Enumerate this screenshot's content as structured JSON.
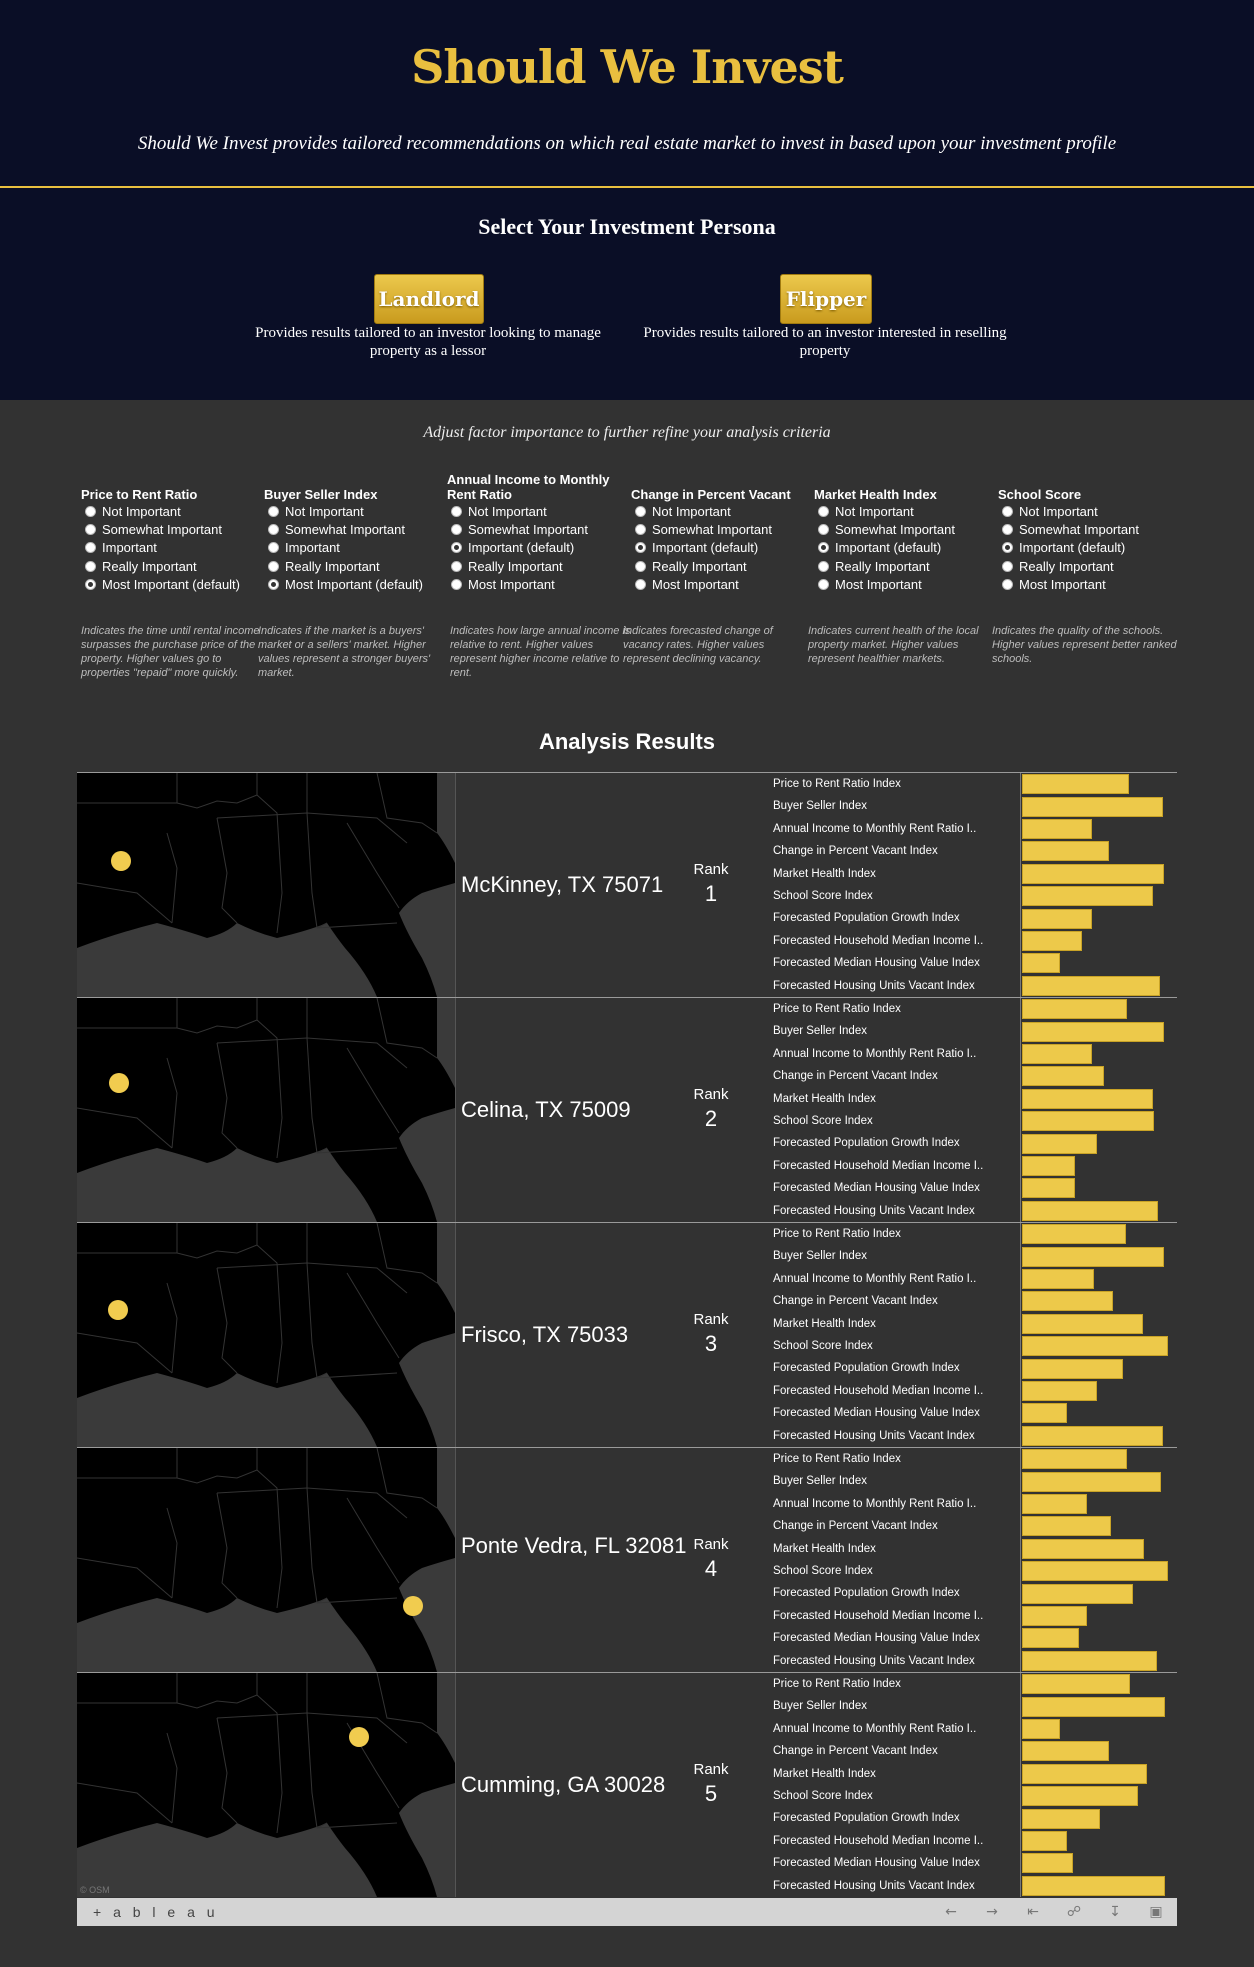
{
  "header": {
    "title": "Should We Invest",
    "tagline": "Should We Invest provides tailored recommendations on which real estate market to invest in based upon your investment profile"
  },
  "persona": {
    "title": "Select Your Investment Persona",
    "landlord": {
      "label": "Landlord",
      "desc": "Provides results tailored to an investor looking to manage property as a lessor"
    },
    "flipper": {
      "label": "Flipper",
      "desc": "Provides results tailored to an investor interested in reselling property"
    }
  },
  "adjust_text": "Adjust factor importance to further refine your analysis criteria",
  "factors": [
    {
      "title": "Price to Rent Ratio",
      "options": [
        "Not Important",
        "Somewhat Important",
        "Important",
        "Really Important",
        "Most Important (default)"
      ],
      "selected": 4,
      "desc": "Indicates the time until rental income surpasses the purchase price of the property. Higher values go to properties \"repaid\" more quickly."
    },
    {
      "title": "Buyer Seller Index",
      "options": [
        "Not Important",
        "Somewhat Important",
        "Important",
        "Really Important",
        "Most Important (default)"
      ],
      "selected": 4,
      "desc": "Indicates if the market is a buyers' market or a sellers' market. Higher values represent a stronger buyers' market."
    },
    {
      "title": "Annual Income to Monthly Rent Ratio",
      "options": [
        "Not Important",
        "Somewhat Important",
        "Important (default)",
        "Really Important",
        "Most Important"
      ],
      "selected": 2,
      "desc": "Indicates how large annual income is relative to rent. Higher values represent higher income relative to rent."
    },
    {
      "title": "Change in Percent Vacant",
      "options": [
        "Not Important",
        "Somewhat Important",
        "Important (default)",
        "Really Important",
        "Most Important"
      ],
      "selected": 2,
      "desc": "Indicates forecasted change of vacancy rates. Higher values represent declining vacancy."
    },
    {
      "title": "Market Health Index",
      "options": [
        "Not Important",
        "Somewhat Important",
        "Important (default)",
        "Really Important",
        "Most Important"
      ],
      "selected": 2,
      "desc": "Indicates current health of the local property market. Higher values represent healthier markets."
    },
    {
      "title": "School Score",
      "options": [
        "Not Important",
        "Somewhat Important",
        "Important (default)",
        "Really Important",
        "Most Important"
      ],
      "selected": 2,
      "desc": "Indicates the quality of the schools. Higher values represent better ranked schools."
    }
  ],
  "results": {
    "title": "Analysis Results",
    "rank_label": "Rank",
    "metric_labels": [
      "Price to Rent Ratio Index",
      "Buyer Seller Index",
      "Annual Income to Monthly Rent Ratio I..",
      "Change in Percent Vacant Index",
      "Market Health Index",
      "School Score Index",
      "Forecasted Population Growth Index",
      "Forecasted Household Median Income I..",
      "Forecasted Median Housing Value Index",
      "Forecasted Housing Units Vacant Index"
    ],
    "rows": [
      {
        "city": "McKinney, TX 75071",
        "rank": "1",
        "values": [
          0.75,
          0.99,
          0.49,
          0.61,
          1.0,
          0.92,
          0.49,
          0.42,
          0.27,
          0.97
        ]
      },
      {
        "city": "Celina, TX  75009",
        "rank": "2",
        "values": [
          0.74,
          1.0,
          0.49,
          0.58,
          0.92,
          0.93,
          0.53,
          0.37,
          0.37,
          0.96
        ]
      },
      {
        "city": "Frisco, TX  75033",
        "rank": "3",
        "values": [
          0.73,
          1.0,
          0.51,
          0.64,
          0.85,
          1.03,
          0.71,
          0.53,
          0.32,
          0.99
        ]
      },
      {
        "city": "Ponte Vedra, FL 32081",
        "rank": "4",
        "values": [
          0.74,
          0.98,
          0.46,
          0.63,
          0.86,
          1.03,
          0.78,
          0.46,
          0.4,
          0.95
        ]
      },
      {
        "city": "Cumming, GA 30028",
        "rank": "5",
        "values": [
          0.76,
          1.01,
          0.27,
          0.61,
          0.88,
          0.82,
          0.55,
          0.32,
          0.36,
          1.01
        ]
      }
    ]
  },
  "map_credit": "© OSM",
  "footer": {
    "logo": "+ a b l e a u"
  },
  "colors": {
    "accent": "#e9bf3f",
    "header_bg": "#0a0e26",
    "body_bg": "#323232",
    "bar": "#edc94a"
  }
}
